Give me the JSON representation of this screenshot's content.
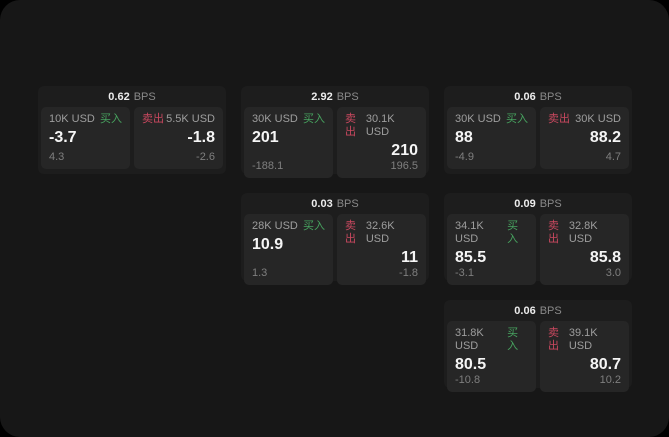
{
  "labels": {
    "bps_unit": "BPS",
    "buy": "买入",
    "sell": "卖出"
  },
  "colors": {
    "page_background": "#000000",
    "panel_background": "#171717",
    "card_background": "#1d1d1d",
    "subpanel_background": "#262626",
    "buy_accent": "#47a35f",
    "sell_accent": "#c9485f",
    "value_text": "#f5f5f5",
    "muted_text": "#8a8a8a"
  },
  "cards": [
    {
      "bps": "0.62",
      "buy": {
        "amount": "10K USD",
        "value": "-3.7",
        "delta": "4.3"
      },
      "sell": {
        "amount": "5.5K USD",
        "value": "-1.8",
        "delta": "-2.6"
      }
    },
    {
      "bps": "2.92",
      "buy": {
        "amount": "30K USD",
        "value": "201",
        "delta": "-188.1"
      },
      "sell": {
        "amount": "30.1K USD",
        "value": "210",
        "delta": "196.5"
      }
    },
    {
      "bps": "0.06",
      "buy": {
        "amount": "30K USD",
        "value": "88",
        "delta": "-4.9"
      },
      "sell": {
        "amount": "30K USD",
        "value": "88.2",
        "delta": "4.7"
      }
    },
    {
      "bps": "0.03",
      "buy": {
        "amount": "28K USD",
        "value": "10.9",
        "delta": "1.3"
      },
      "sell": {
        "amount": "32.6K USD",
        "value": "11",
        "delta": "-1.8"
      }
    },
    {
      "bps": "0.09",
      "buy": {
        "amount": "34.1K USD",
        "value": "85.5",
        "delta": "-3.1"
      },
      "sell": {
        "amount": "32.8K USD",
        "value": "85.8",
        "delta": "3.0"
      }
    },
    {
      "bps": "0.06",
      "buy": {
        "amount": "31.8K USD",
        "value": "80.5",
        "delta": "-10.8"
      },
      "sell": {
        "amount": "39.1K USD",
        "value": "80.7",
        "delta": "10.2"
      }
    }
  ]
}
